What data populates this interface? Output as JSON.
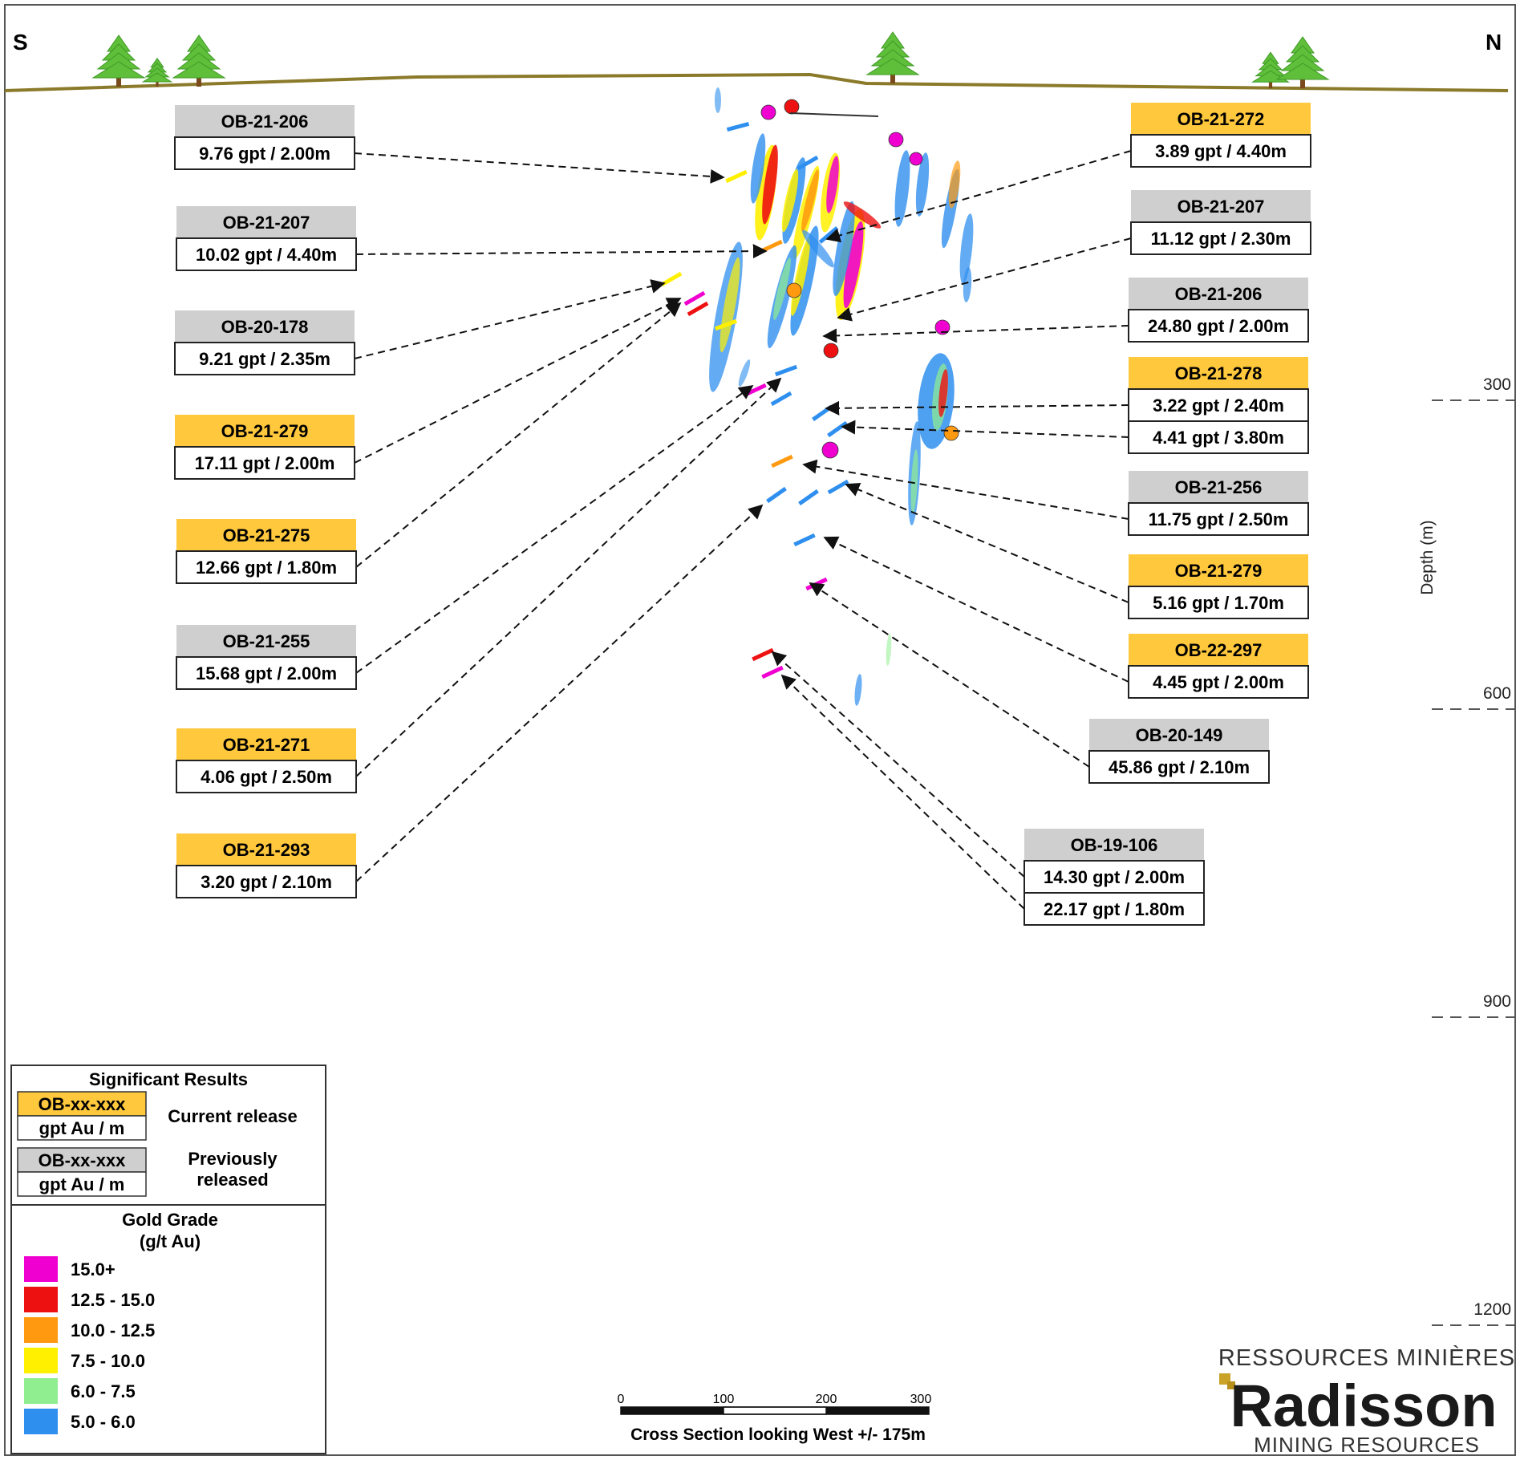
{
  "compass": {
    "south": "S",
    "north": "N"
  },
  "colors": {
    "current": "#FFC83D",
    "previous": "#CFCFCF",
    "ground": "#8a7a2a",
    "tree": "#5fbf3a",
    "trunk": "#7a4a1c"
  },
  "depth_axis": {
    "label": "Depth (m)",
    "ticks": [
      "300",
      "600",
      "900",
      "1200"
    ]
  },
  "labels": [
    {
      "id": "ob-21-206-a",
      "name": "OB-21-206",
      "status": "previous",
      "values": [
        "9.76 gpt / 2.00m"
      ]
    },
    {
      "id": "ob-21-207-a",
      "name": "OB-21-207",
      "status": "previous",
      "values": [
        "10.02 gpt / 4.40m"
      ]
    },
    {
      "id": "ob-20-178",
      "name": "OB-20-178",
      "status": "previous",
      "values": [
        "9.21 gpt / 2.35m"
      ]
    },
    {
      "id": "ob-21-279-a",
      "name": "OB-21-279",
      "status": "current",
      "values": [
        "17.11 gpt / 2.00m"
      ]
    },
    {
      "id": "ob-21-275",
      "name": "OB-21-275",
      "status": "current",
      "values": [
        "12.66 gpt / 1.80m"
      ]
    },
    {
      "id": "ob-21-255",
      "name": "OB-21-255",
      "status": "previous",
      "values": [
        "15.68 gpt / 2.00m"
      ]
    },
    {
      "id": "ob-21-271",
      "name": "OB-21-271",
      "status": "current",
      "values": [
        "4.06 gpt / 2.50m"
      ]
    },
    {
      "id": "ob-21-293",
      "name": "OB-21-293",
      "status": "current",
      "values": [
        "3.20 gpt / 2.10m"
      ]
    },
    {
      "id": "ob-21-272",
      "name": "OB-21-272",
      "status": "current",
      "values": [
        "3.89 gpt / 4.40m"
      ]
    },
    {
      "id": "ob-21-207-b",
      "name": "OB-21-207",
      "status": "previous",
      "values": [
        "11.12 gpt / 2.30m"
      ]
    },
    {
      "id": "ob-21-206-b",
      "name": "OB-21-206",
      "status": "previous",
      "values": [
        "24.80 gpt / 2.00m"
      ]
    },
    {
      "id": "ob-21-278",
      "name": "OB-21-278",
      "status": "current",
      "values": [
        "3.22 gpt / 2.40m",
        "4.41 gpt / 3.80m"
      ]
    },
    {
      "id": "ob-21-256",
      "name": "OB-21-256",
      "status": "previous",
      "values": [
        "11.75 gpt / 2.50m"
      ]
    },
    {
      "id": "ob-21-279-b",
      "name": "OB-21-279",
      "status": "current",
      "values": [
        "5.16 gpt / 1.70m"
      ]
    },
    {
      "id": "ob-22-297",
      "name": "OB-22-297",
      "status": "current",
      "values": [
        "4.45 gpt / 2.00m"
      ]
    },
    {
      "id": "ob-20-149",
      "name": "OB-20-149",
      "status": "previous",
      "values": [
        "45.86 gpt / 2.10m"
      ]
    },
    {
      "id": "ob-19-106",
      "name": "OB-19-106",
      "status": "previous",
      "values": [
        "14.30 gpt / 2.00m",
        "22.17 gpt / 1.80m"
      ]
    }
  ],
  "legend": {
    "results_title": "Significant Results",
    "current_name": "OB-xx-xxx",
    "current_unit": "gpt Au / m",
    "current_text": "Current release",
    "previous_name": "OB-xx-xxx",
    "previous_unit": "gpt Au / m",
    "previous_text_1": "Previously",
    "previous_text_2": "released",
    "grade_title_1": "Gold Grade",
    "grade_title_2": "(g/t Au)",
    "grades": [
      {
        "label": "15.0+",
        "color": "#F000D0"
      },
      {
        "label": "12.5 - 15.0",
        "color": "#EE1111"
      },
      {
        "label": "10.0 - 12.5",
        "color": "#FF9A10"
      },
      {
        "label": "7.5 - 10.0",
        "color": "#FFF000"
      },
      {
        "label": "6.0 - 7.5",
        "color": "#90EE90"
      },
      {
        "label": "5.0 - 6.0",
        "color": "#2F8FEF"
      }
    ]
  },
  "scale": {
    "ticks": [
      "0",
      "100",
      "200",
      "300"
    ],
    "caption": "Cross Section looking West +/- 175m"
  },
  "logo": {
    "top": "RESSOURCES MINIÈRES",
    "name": "Radisson",
    "bottom": "MINING RESOURCES"
  }
}
